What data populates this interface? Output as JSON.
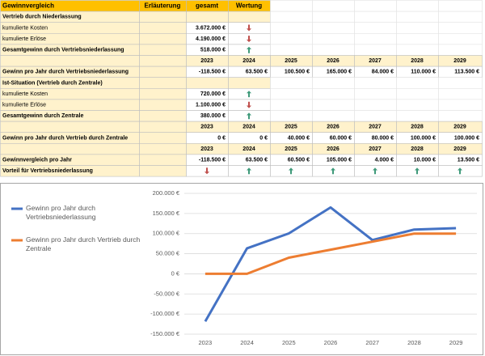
{
  "table": {
    "rows": [
      {
        "kind": "header",
        "cells": [
          "Gewinnvergleich",
          "Erläuterung",
          "gesamt",
          "Wertung"
        ]
      },
      {
        "kind": "section",
        "cells": [
          "Vertrieb durch Niederlassung"
        ]
      },
      {
        "kind": "item",
        "cells": [
          "kumulierte Kosten",
          null,
          "3.672.000 €",
          {
            "arrow": "down"
          }
        ]
      },
      {
        "kind": "item",
        "cells": [
          "kumulierte Erlöse",
          null,
          "4.190.000 €",
          {
            "arrow": "down"
          }
        ]
      },
      {
        "kind": "total",
        "cells": [
          "Gesamtgewinn durch Vertriebsniederlassung",
          null,
          "518.000 €",
          {
            "arrow": "up"
          }
        ]
      },
      {
        "kind": "years",
        "cells": [
          null,
          null,
          "2023",
          "2024",
          "2025",
          "2026",
          "2027",
          "2028",
          "2029"
        ]
      },
      {
        "kind": "values",
        "cells": [
          "Gewinn pro Jahr durch Vertriebsniederlassung",
          null,
          "-118.500 €",
          "63.500 €",
          "100.500 €",
          "165.000 €",
          "84.000 €",
          "110.000 €",
          "113.500 €"
        ]
      },
      {
        "kind": "section",
        "cells": [
          "Ist-Situation (Vertrieb durch Zentrale)"
        ]
      },
      {
        "kind": "item",
        "cells": [
          "kumulierte Kosten",
          null,
          "720.000 €",
          {
            "arrow": "up"
          }
        ]
      },
      {
        "kind": "item",
        "cells": [
          "kumulierte Erlöse",
          null,
          "1.100.000 €",
          {
            "arrow": "down"
          }
        ]
      },
      {
        "kind": "total",
        "cells": [
          "Gesamtgewinn durch Zentrale",
          null,
          "380.000 €",
          {
            "arrow": "up"
          }
        ]
      },
      {
        "kind": "years",
        "cells": [
          null,
          null,
          "2023",
          "2024",
          "2025",
          "2026",
          "2027",
          "2028",
          "2029"
        ]
      },
      {
        "kind": "values",
        "cells": [
          "Gewinn pro Jahr durch Vertrieb durch Zentrale",
          null,
          "0 €",
          "0 €",
          "40.000 €",
          "60.000 €",
          "80.000 €",
          "100.000 €",
          "100.000 €"
        ]
      },
      {
        "kind": "years",
        "cells": [
          null,
          null,
          "2023",
          "2024",
          "2025",
          "2026",
          "2027",
          "2028",
          "2029"
        ]
      },
      {
        "kind": "values",
        "cells": [
          "Gewinnvergleich pro Jahr",
          null,
          "-118.500 €",
          "63.500 €",
          "60.500 €",
          "105.000 €",
          "4.000 €",
          "10.000 €",
          "13.500 €"
        ]
      },
      {
        "kind": "values",
        "cells": [
          "Vorteil für Vertriebsniederlassung",
          null,
          {
            "arrow": "down"
          },
          {
            "arrow": "up"
          },
          {
            "arrow": "up"
          },
          {
            "arrow": "up"
          },
          {
            "arrow": "up"
          },
          {
            "arrow": "up"
          },
          {
            "arrow": "up"
          }
        ]
      }
    ]
  },
  "chart_data": {
    "type": "line",
    "categories": [
      "2023",
      "2024",
      "2025",
      "2026",
      "2027",
      "2028",
      "2029"
    ],
    "series": [
      {
        "name": "Gewinn pro Jahr durch Vertriebsniederlassung",
        "color": "#4472c4",
        "values": [
          -118500,
          63500,
          100500,
          165000,
          84000,
          110000,
          113500
        ]
      },
      {
        "name": "Gewinn pro Jahr durch Vertrieb durch Zentrale",
        "color": "#ed7d31",
        "values": [
          0,
          0,
          40000,
          60000,
          80000,
          100000,
          100000
        ]
      }
    ],
    "ylim": [
      -150000,
      200000
    ],
    "yticks": [
      {
        "value": 200000,
        "label": "200.000 €"
      },
      {
        "value": 150000,
        "label": "150.000 €"
      },
      {
        "value": 100000,
        "label": "100.000 €"
      },
      {
        "value": 50000,
        "label": "50.000 €"
      },
      {
        "value": 0,
        "label": "0 €"
      },
      {
        "value": -50000,
        "label": "-50.000 €"
      },
      {
        "value": -100000,
        "label": "-100.000 €"
      },
      {
        "value": -150000,
        "label": "-150.000 €"
      }
    ],
    "grid": true,
    "legend": "left"
  }
}
